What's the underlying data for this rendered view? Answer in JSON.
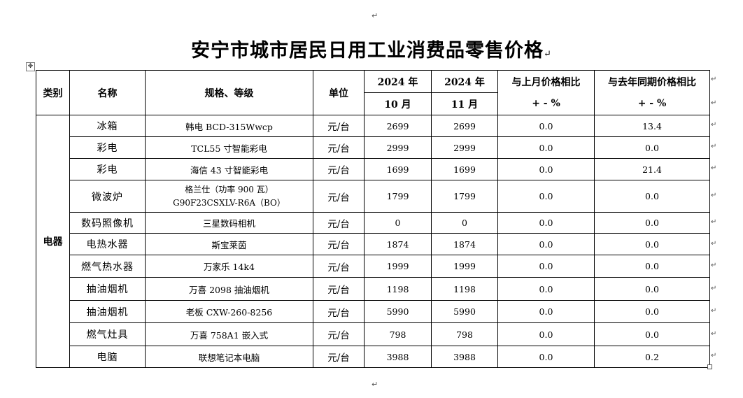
{
  "title": "安宁市城市居民日用工业消费品零售价格",
  "para_mark": "↵",
  "table_handle": "✥",
  "header": {
    "category": "类别",
    "name": "名称",
    "spec": "规格、等级",
    "unit": "单位",
    "oct_year": "2024 年",
    "oct_month": "10 月",
    "nov_year": "2024 年",
    "nov_month": "11 月",
    "mom_title": "与上月价格相比",
    "mom_unit": "+ - %",
    "yoy_title": "与去年同期价格相比",
    "yoy_unit": "+ - %"
  },
  "category": "电器",
  "rows": [
    {
      "name": "冰箱",
      "spec": "韩电 BCD-315Wwcp",
      "unit": "元/台",
      "oct": "2699",
      "nov": "2699",
      "mom": "0.0",
      "yoy": "13.4"
    },
    {
      "name": "彩电",
      "spec": "TCL55 寸智能彩电",
      "unit": "元/台",
      "oct": "2999",
      "nov": "2999",
      "mom": "0.0",
      "yoy": "0.0"
    },
    {
      "name": "彩电",
      "spec": "海信 43 寸智能彩电",
      "unit": "元/台",
      "oct": "1699",
      "nov": "1699",
      "mom": "0.0",
      "yoy": "21.4"
    },
    {
      "name": "微波炉",
      "spec_l1": "格兰仕（功率 900 瓦）",
      "spec_l2": "G90F23CSXLV-R6A（BO）",
      "unit": "元/台",
      "oct": "1799",
      "nov": "1799",
      "mom": "0.0",
      "yoy": "0.0"
    },
    {
      "name": "数码照像机",
      "spec": "三星数码相机",
      "unit": "元/台",
      "oct": "0",
      "nov": "0",
      "mom": "0.0",
      "yoy": "0.0"
    },
    {
      "name": "电热水器",
      "spec": "斯宝莱茵",
      "unit": "元/台",
      "oct": "1874",
      "nov": "1874",
      "mom": "0.0",
      "yoy": "0.0"
    },
    {
      "name": "燃气热水器",
      "spec": "万家乐 14k4",
      "unit": "元/台",
      "oct": "1999",
      "nov": "1999",
      "mom": "0.0",
      "yoy": "0.0"
    },
    {
      "name": "抽油烟机",
      "spec": "万喜 2098 抽油烟机",
      "unit": "元/台",
      "oct": "1198",
      "nov": "1198",
      "mom": "0.0",
      "yoy": "0.0"
    },
    {
      "name": "抽油烟机",
      "spec": "老板 CXW-260-8256",
      "unit": "元/台",
      "oct": "5990",
      "nov": "5990",
      "mom": "0.0",
      "yoy": "0.0"
    },
    {
      "name": "燃气灶具",
      "spec": "万喜 758A1 嵌入式",
      "unit": "元/台",
      "oct": "798",
      "nov": "798",
      "mom": "0.0",
      "yoy": "0.0"
    },
    {
      "name": "电脑",
      "spec": "联想笔记本电脑",
      "unit": "元/台",
      "oct": "3988",
      "nov": "3988",
      "mom": "0.0",
      "yoy": "0.2"
    }
  ]
}
